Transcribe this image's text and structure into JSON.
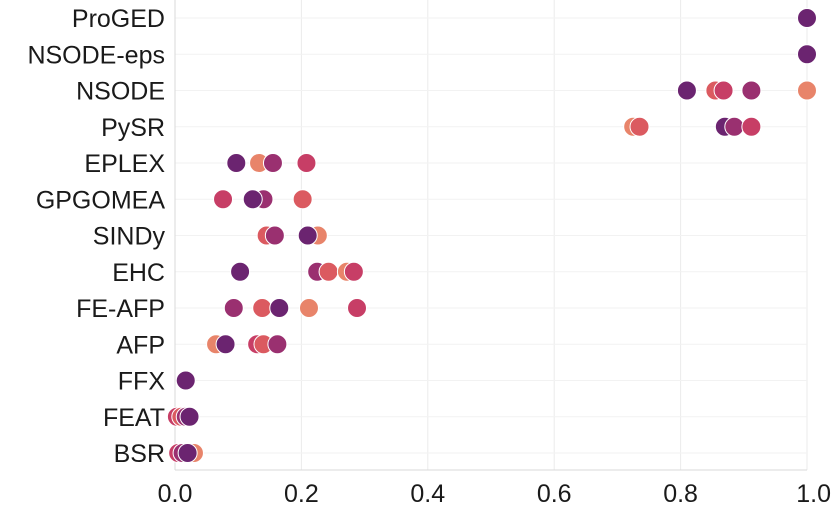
{
  "chart_data": {
    "type": "scatter",
    "title": "",
    "xlabel": "",
    "ylabel": "",
    "xlim": [
      0.0,
      1.0
    ],
    "x_ticks": [
      "0.0",
      "0.2",
      "0.4",
      "0.6",
      "0.8",
      "1.0"
    ],
    "x_tick_values": [
      0.0,
      0.2,
      0.4,
      0.6,
      0.8,
      1.0
    ],
    "categories": [
      "ProGED",
      "NSODE-eps",
      "NSODE",
      "PySR",
      "EPLEX",
      "GPGOMEA",
      "SINDy",
      "EHC",
      "FE-AFP",
      "AFP",
      "FFX",
      "FEAT",
      "BSR"
    ],
    "grid": "vertical",
    "legend": "none",
    "palette": [
      "#e8846a",
      "#db5a60",
      "#c73e66",
      "#9a3070",
      "#6b2470"
    ],
    "points": [
      {
        "category": "ProGED",
        "values": [
          1.0
        ],
        "colors": [
          4
        ]
      },
      {
        "category": "NSODE-eps",
        "values": [
          1.0
        ],
        "colors": [
          4
        ]
      },
      {
        "category": "NSODE",
        "values": [
          0.81,
          0.855,
          0.868,
          0.912,
          1.0
        ],
        "colors": [
          4,
          1,
          2,
          3,
          0
        ]
      },
      {
        "category": "PySR",
        "values": [
          0.725,
          0.735,
          0.87,
          0.885,
          0.912
        ],
        "colors": [
          0,
          1,
          4,
          3,
          2
        ]
      },
      {
        "category": "EPLEX",
        "values": [
          0.097,
          0.133,
          0.155,
          0.208
        ],
        "colors": [
          4,
          0,
          3,
          2
        ]
      },
      {
        "category": "GPGOMEA",
        "values": [
          0.076,
          0.14,
          0.123,
          0.202
        ],
        "colors": [
          2,
          3,
          4,
          1
        ]
      },
      {
        "category": "SINDy",
        "values": [
          0.226,
          0.145,
          0.158,
          0.21
        ],
        "colors": [
          0,
          1,
          3,
          4
        ]
      },
      {
        "category": "EHC",
        "values": [
          0.103,
          0.225,
          0.243,
          0.272,
          0.283
        ],
        "colors": [
          4,
          3,
          1,
          0,
          2
        ]
      },
      {
        "category": "FE-AFP",
        "values": [
          0.093,
          0.138,
          0.165,
          0.212,
          0.288
        ],
        "colors": [
          3,
          1,
          4,
          0,
          2
        ]
      },
      {
        "category": "AFP",
        "values": [
          0.065,
          0.08,
          0.13,
          0.14,
          0.162
        ],
        "colors": [
          0,
          4,
          2,
          1,
          3
        ]
      },
      {
        "category": "FFX",
        "values": [
          0.017
        ],
        "colors": [
          4
        ]
      },
      {
        "category": "FEAT",
        "values": [
          0.003,
          0.01,
          0.017,
          0.023
        ],
        "colors": [
          2,
          1,
          3,
          4
        ]
      },
      {
        "category": "BSR",
        "values": [
          0.005,
          0.012,
          0.03,
          0.02
        ],
        "colors": [
          2,
          3,
          0,
          4
        ]
      }
    ]
  }
}
